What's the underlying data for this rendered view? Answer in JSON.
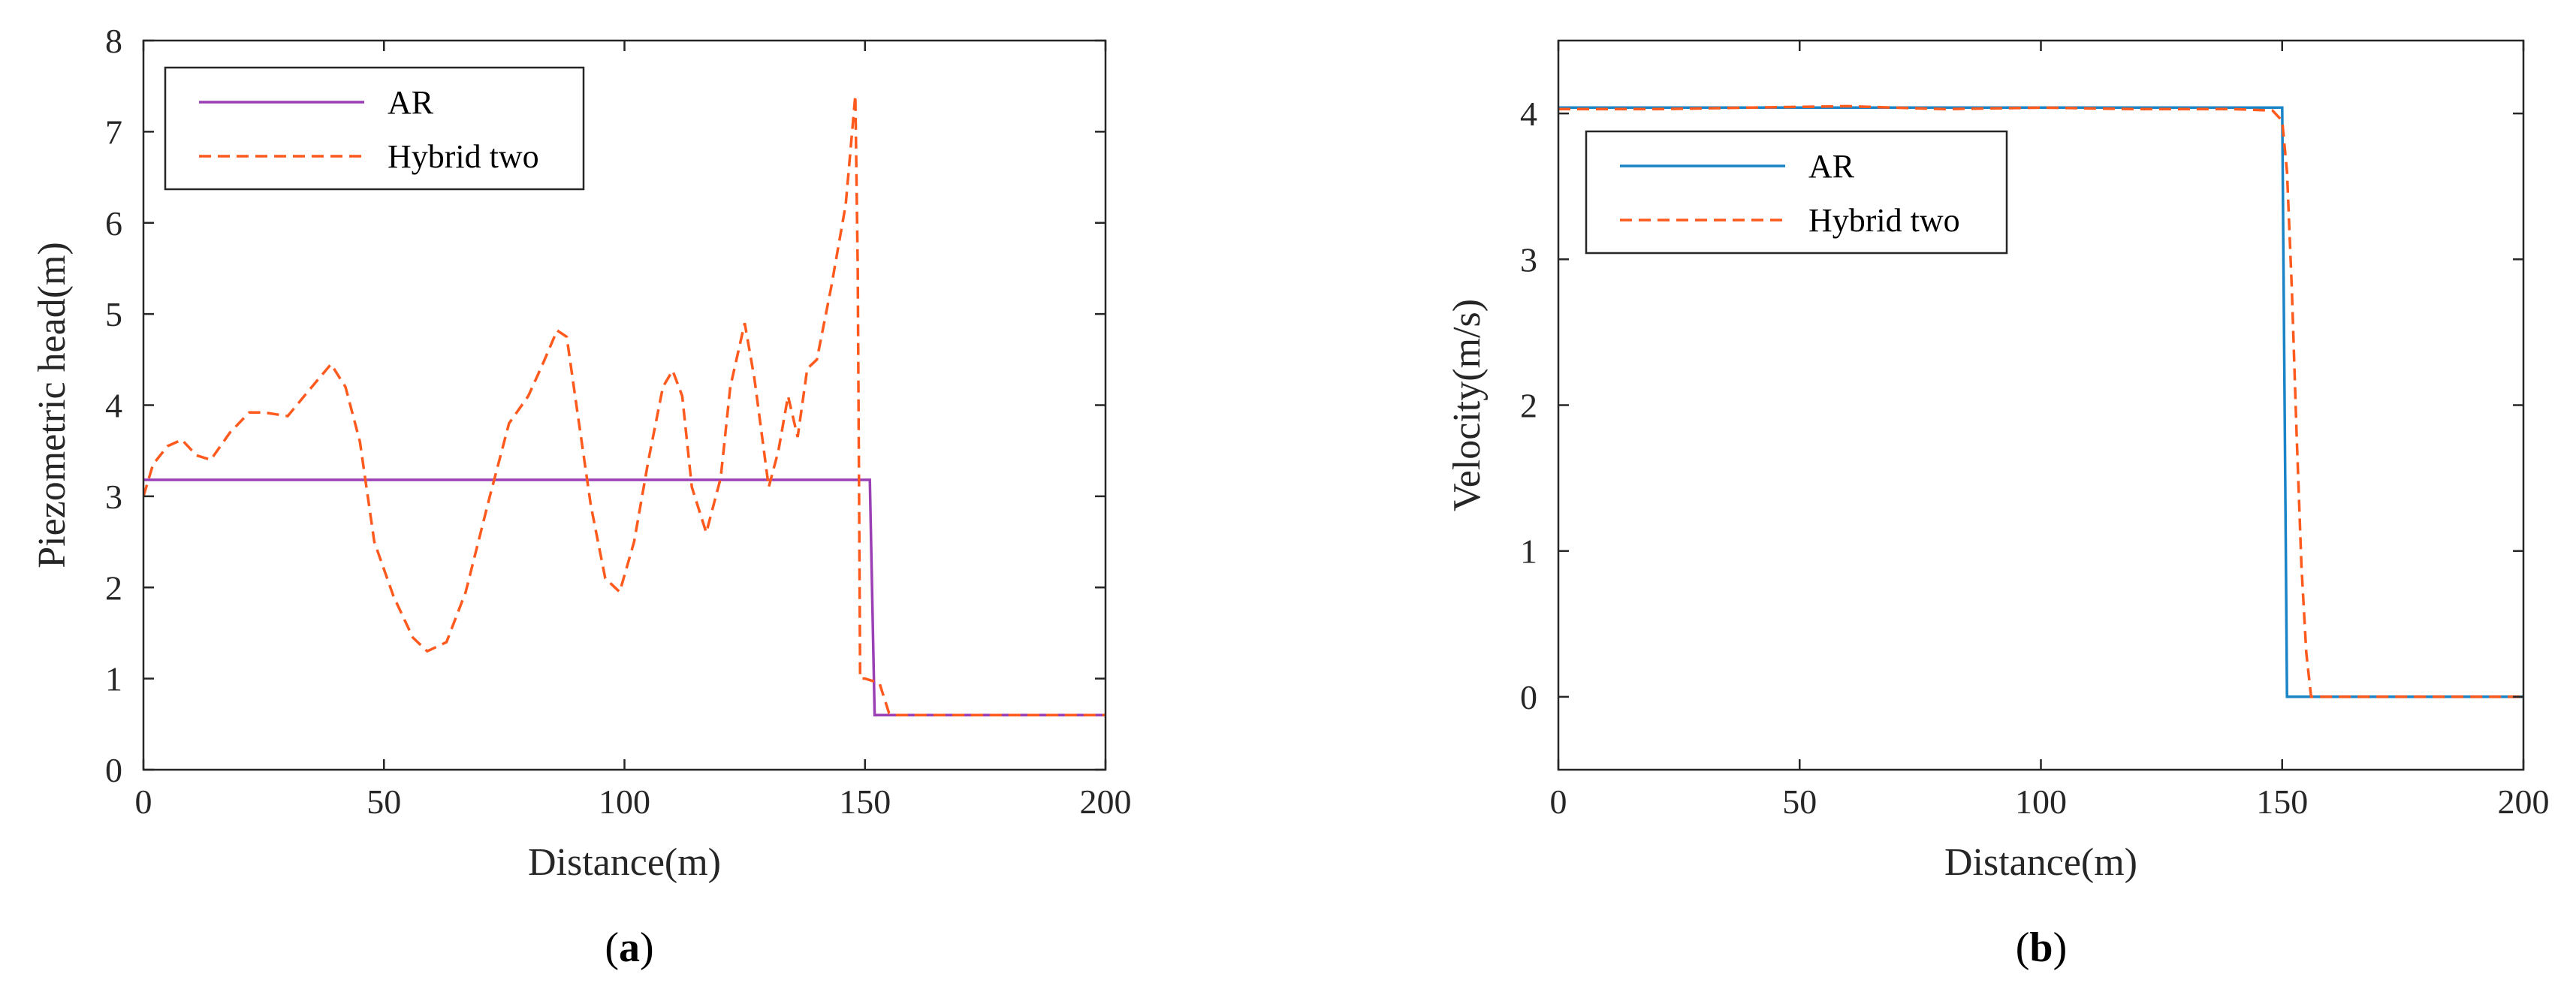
{
  "chart_data": [
    {
      "type": "line",
      "panel": "a",
      "xlabel": "Distance(m)",
      "ylabel": "Piezometric head(m)",
      "xlim": [
        0,
        200
      ],
      "ylim": [
        0,
        8
      ],
      "xticks": [
        0,
        50,
        100,
        150,
        200
      ],
      "yticks": [
        0,
        1,
        2,
        3,
        4,
        5,
        6,
        7,
        8
      ],
      "legend_position": "top-left",
      "series": [
        {
          "name": "AR",
          "color": "#9b3fb5",
          "dash": "solid",
          "x": [
            0,
            151,
            152,
            200
          ],
          "y": [
            3.18,
            3.18,
            0.6,
            0.6
          ]
        },
        {
          "name": "Hybrid two",
          "color": "#ff5a1e",
          "dash": "dashed",
          "x": [
            0,
            2,
            5,
            8,
            11,
            14,
            18,
            22,
            25,
            30,
            35,
            39,
            42,
            45,
            48,
            52,
            56,
            59,
            63,
            67,
            72,
            76,
            80,
            83,
            86,
            88,
            90,
            93,
            96,
            99,
            102,
            105,
            108,
            110,
            112,
            114,
            117,
            120,
            122,
            125,
            127,
            130,
            132,
            134,
            136,
            138,
            140,
            143,
            146,
            148,
            148.5,
            149,
            150,
            153,
            155,
            156,
            200
          ],
          "y": [
            3.0,
            3.35,
            3.55,
            3.62,
            3.45,
            3.4,
            3.7,
            3.92,
            3.92,
            3.88,
            4.2,
            4.45,
            4.2,
            3.6,
            2.5,
            1.9,
            1.45,
            1.3,
            1.4,
            1.95,
            3.0,
            3.8,
            4.1,
            4.45,
            4.82,
            4.75,
            4.0,
            2.9,
            2.1,
            1.95,
            2.5,
            3.4,
            4.2,
            4.38,
            4.1,
            3.1,
            2.6,
            3.2,
            4.2,
            4.9,
            4.3,
            3.1,
            3.5,
            4.1,
            3.65,
            4.4,
            4.5,
            5.3,
            6.2,
            7.4,
            5.5,
            1.0,
            1.0,
            0.95,
            0.62,
            0.6,
            0.6
          ]
        }
      ]
    },
    {
      "type": "line",
      "panel": "b",
      "xlabel": "Distance(m)",
      "ylabel": "Velocity(m/s)",
      "xlim": [
        0,
        200
      ],
      "ylim": [
        -0.5,
        4.5
      ],
      "xticks": [
        0,
        50,
        100,
        150,
        200
      ],
      "yticks": [
        0,
        1,
        2,
        3,
        4
      ],
      "legend_position": "top-left",
      "series": [
        {
          "name": "AR",
          "color": "#1a84c7",
          "dash": "solid",
          "x": [
            0,
            150,
            151,
            200
          ],
          "y": [
            4.04,
            4.04,
            0,
            0
          ]
        },
        {
          "name": "Hybrid two",
          "color": "#ff5a1e",
          "dash": "dashed",
          "x": [
            0,
            20,
            40,
            60,
            80,
            100,
            120,
            140,
            148,
            150,
            151,
            152,
            153,
            154,
            155,
            156,
            200
          ],
          "y": [
            4.03,
            4.03,
            4.04,
            4.05,
            4.03,
            4.04,
            4.03,
            4.03,
            4.02,
            3.95,
            3.6,
            2.8,
            1.8,
            0.9,
            0.3,
            0.0,
            0.0
          ]
        }
      ]
    }
  ],
  "panel_labels": [
    "a",
    "b"
  ]
}
